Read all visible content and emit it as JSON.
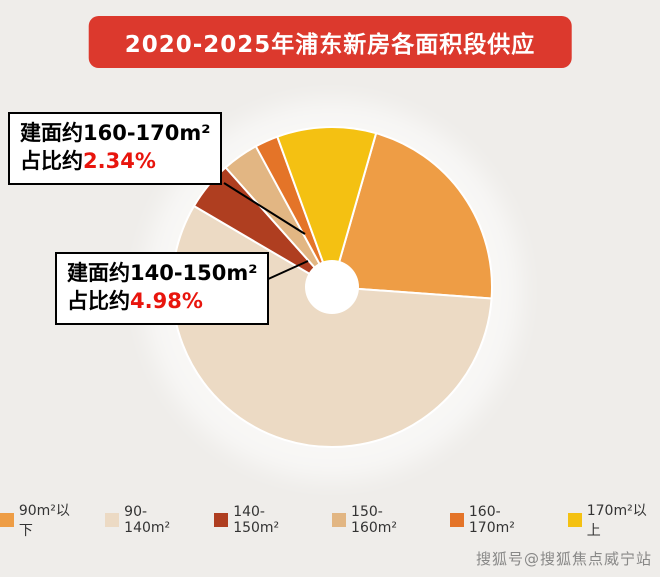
{
  "page": {
    "background": "#efedea",
    "watermark": "搜狐号@搜狐焦点威宁站"
  },
  "header": {
    "title": "2020-2025年浦东新房各面积段供应",
    "bg_color": "#dc392d",
    "text_color": "#ffffff"
  },
  "chart_data": {
    "type": "pie",
    "title": "2020-2025年浦东新房各面积段供应",
    "donut": true,
    "hole_ratio": 0.17,
    "legend_position": "bottom",
    "start_angle_deg": 16,
    "categories": [
      "90m²以下",
      "90-140m²",
      "140-150m²",
      "150-160m²",
      "160-170m²",
      "170m²以上"
    ],
    "values": [
      21.7,
      57.3,
      4.98,
      3.68,
      2.34,
      10.0
    ],
    "colors": [
      "#ee9d45",
      "#ecdac4",
      "#af3e20",
      "#e2b683",
      "#e47428",
      "#f4c112"
    ],
    "annotations": [
      {
        "label": "建面约160-170m²",
        "prefix": "占比约",
        "value": "2.34%",
        "value_color": "#e8150d"
      },
      {
        "label": "建面约140-150m²",
        "prefix": "占比约",
        "value": "4.98%",
        "value_color": "#e8150d"
      }
    ]
  }
}
